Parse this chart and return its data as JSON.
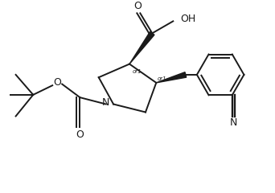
{
  "bg_color": "#ffffff",
  "line_color": "#1a1a1a",
  "line_width": 1.4,
  "figsize": [
    3.42,
    2.4
  ],
  "dpi": 100,
  "xlim": [
    0,
    10
  ],
  "ylim": [
    0,
    7
  ]
}
